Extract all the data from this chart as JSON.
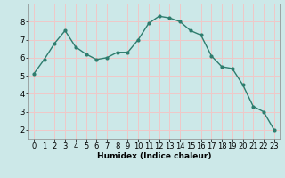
{
  "x": [
    0,
    1,
    2,
    3,
    4,
    5,
    6,
    7,
    8,
    9,
    10,
    11,
    12,
    13,
    14,
    15,
    16,
    17,
    18,
    19,
    20,
    21,
    22,
    23
  ],
  "y": [
    5.1,
    5.9,
    6.8,
    7.5,
    6.6,
    6.2,
    5.9,
    6.0,
    6.3,
    6.3,
    7.0,
    7.9,
    8.3,
    8.2,
    8.0,
    7.5,
    7.25,
    6.1,
    5.5,
    5.4,
    4.5,
    3.3,
    3.0,
    2.0
  ],
  "line_color": "#2e7d6e",
  "marker": "o",
  "marker_size": 2.0,
  "line_width": 1.0,
  "xlabel": "Humidex (Indice chaleur)",
  "xlim": [
    -0.5,
    23.5
  ],
  "ylim": [
    1.5,
    9.0
  ],
  "yticks": [
    2,
    3,
    4,
    5,
    6,
    7,
    8
  ],
  "xticks": [
    0,
    1,
    2,
    3,
    4,
    5,
    6,
    7,
    8,
    9,
    10,
    11,
    12,
    13,
    14,
    15,
    16,
    17,
    18,
    19,
    20,
    21,
    22,
    23
  ],
  "bg_color": "#cce8e8",
  "grid_color": "#f0c8c8",
  "label_fontsize": 6.5,
  "tick_fontsize": 6.0
}
